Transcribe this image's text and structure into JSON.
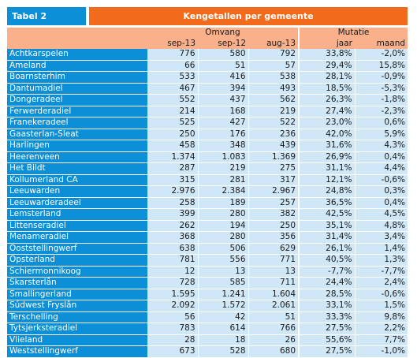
{
  "header": {
    "tab_label": "Tabel 2",
    "title": "Kengetallen per gemeente"
  },
  "columns": {
    "group_omvang": "Omvang",
    "group_mutatie": "Mutatie",
    "sub": [
      "sep-13",
      "sep-12",
      "aug-13",
      "jaar",
      "maand"
    ]
  },
  "rows": [
    {
      "name": "Achtkarspelen",
      "v": [
        "776",
        "580",
        "792",
        "33,8%",
        "-2,0%"
      ]
    },
    {
      "name": "Ameland",
      "v": [
        "66",
        "51",
        "57",
        "29,4%",
        "15,8%"
      ]
    },
    {
      "name": "Boarnsterhim",
      "v": [
        "533",
        "416",
        "538",
        "28,1%",
        "-0,9%"
      ]
    },
    {
      "name": "Dantumadiel",
      "v": [
        "467",
        "394",
        "493",
        "18,5%",
        "-5,3%"
      ]
    },
    {
      "name": "Dongeradeel",
      "v": [
        "552",
        "437",
        "562",
        "26,3%",
        "-1,8%"
      ]
    },
    {
      "name": "Ferwerderadiel",
      "v": [
        "214",
        "168",
        "219",
        "27,4%",
        "-2,3%"
      ]
    },
    {
      "name": "Franekeradeel",
      "v": [
        "525",
        "427",
        "522",
        "23,0%",
        "0,6%"
      ]
    },
    {
      "name": "Gaasterlan-Sleat",
      "v": [
        "250",
        "176",
        "236",
        "42,0%",
        "5,9%"
      ]
    },
    {
      "name": "Harlingen",
      "v": [
        "458",
        "348",
        "439",
        "31,6%",
        "4,3%"
      ]
    },
    {
      "name": "Heerenveen",
      "v": [
        "1.374",
        "1.083",
        "1.369",
        "26,9%",
        "0,4%"
      ]
    },
    {
      "name": "Het Bildt",
      "v": [
        "287",
        "219",
        "275",
        "31,1%",
        "4,4%"
      ]
    },
    {
      "name": "Kollumerland CA",
      "v": [
        "315",
        "281",
        "317",
        "12,1%",
        "-0,6%"
      ]
    },
    {
      "name": "Leeuwarden",
      "v": [
        "2.976",
        "2.384",
        "2.967",
        "24,8%",
        "0,3%"
      ]
    },
    {
      "name": "Leeuwarderadeel",
      "v": [
        "258",
        "189",
        "257",
        "36,5%",
        "0,4%"
      ]
    },
    {
      "name": "Lemsterland",
      "v": [
        "399",
        "280",
        "382",
        "42,5%",
        "4,5%"
      ]
    },
    {
      "name": "Littenseradiel",
      "v": [
        "262",
        "194",
        "250",
        "35,1%",
        "4,8%"
      ]
    },
    {
      "name": "Menameradiel",
      "v": [
        "368",
        "280",
        "356",
        "31,4%",
        "3,4%"
      ]
    },
    {
      "name": "Ooststellingwerf",
      "v": [
        "638",
        "506",
        "629",
        "26,1%",
        "1,4%"
      ]
    },
    {
      "name": "Opsterland",
      "v": [
        "781",
        "556",
        "771",
        "40,5%",
        "1,3%"
      ]
    },
    {
      "name": "Schiermonnikoog",
      "v": [
        "12",
        "13",
        "13",
        "-7,7%",
        "-7,7%"
      ]
    },
    {
      "name": "Skarsterlân",
      "v": [
        "728",
        "585",
        "711",
        "24,4%",
        "2,4%"
      ]
    },
    {
      "name": "Smallingerland",
      "v": [
        "1.595",
        "1.241",
        "1.604",
        "28,5%",
        "-0,6%"
      ]
    },
    {
      "name": "Súdwest Fryslân",
      "v": [
        "2.092",
        "1.572",
        "2.061",
        "33,1%",
        "1,5%"
      ]
    },
    {
      "name": "Terschelling",
      "v": [
        "56",
        "42",
        "51",
        "33,3%",
        "9,8%"
      ]
    },
    {
      "name": "Tytsjerksteradiel",
      "v": [
        "783",
        "614",
        "766",
        "27,5%",
        "2,2%"
      ]
    },
    {
      "name": "Vlieland",
      "v": [
        "28",
        "18",
        "26",
        "55,6%",
        "7,7%"
      ]
    },
    {
      "name": "Weststellingwerf",
      "v": [
        "673",
        "528",
        "680",
        "27,5%",
        "-1,0%"
      ]
    }
  ]
}
